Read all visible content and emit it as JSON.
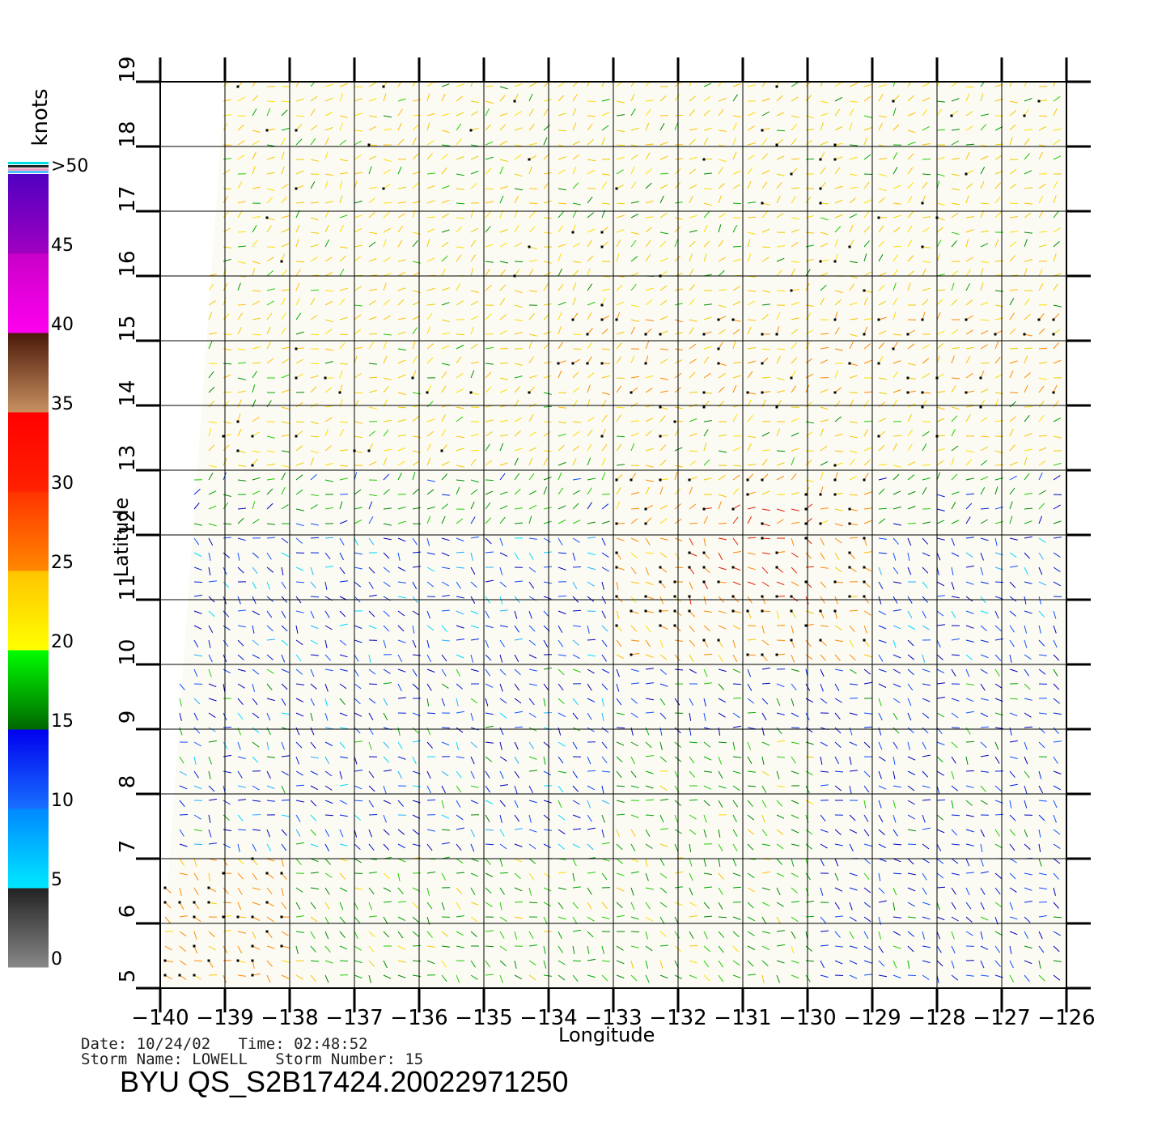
{
  "map": {
    "x_axis_label": "Longitude",
    "y_axis_label": "Latitude",
    "lon_ticks": [
      "−140",
      "−139",
      "−138",
      "−137",
      "−136",
      "−135",
      "−134",
      "−133",
      "−132",
      "−131",
      "−130",
      "−129",
      "−128",
      "−127",
      "−126"
    ],
    "lat_ticks": [
      "5",
      "6",
      "7",
      "8",
      "9",
      "10",
      "11",
      "12",
      "13",
      "14",
      "15",
      "16",
      "17",
      "18",
      "19"
    ],
    "lon_range": [
      -140,
      -126
    ],
    "lat_range": [
      5,
      19
    ],
    "grid": true
  },
  "colorbar": {
    "unit": "knots",
    "tick_labels": [
      "0",
      "5",
      "10",
      "15",
      "20",
      "25",
      "30",
      "35",
      "40",
      "45",
      ">50"
    ],
    "bands": [
      {
        "range": [
          0,
          5
        ],
        "colors": [
          "#888888",
          "#222222"
        ]
      },
      {
        "range": [
          5,
          10
        ],
        "colors": [
          "#00e8ff",
          "#0088ff"
        ]
      },
      {
        "range": [
          10,
          15
        ],
        "colors": [
          "#1870ff",
          "#0000ee"
        ]
      },
      {
        "range": [
          15,
          20
        ],
        "colors": [
          "#006600",
          "#00ff00"
        ]
      },
      {
        "range": [
          20,
          25
        ],
        "colors": [
          "#ffff00",
          "#ffc400"
        ]
      },
      {
        "range": [
          25,
          30
        ],
        "colors": [
          "#ff8800",
          "#ff3300"
        ]
      },
      {
        "range": [
          30,
          35
        ],
        "colors": [
          "#ff2200",
          "#ff0000"
        ]
      },
      {
        "range": [
          35,
          40
        ],
        "colors": [
          "#c89060",
          "#4a1808"
        ]
      },
      {
        "range": [
          40,
          45
        ],
        "colors": [
          "#ff00ee",
          "#c800c8"
        ]
      },
      {
        "range": [
          45,
          50
        ],
        "colors": [
          "#a000c0",
          "#5000c0"
        ]
      }
    ]
  },
  "metadata": {
    "date_line": "Date: 10/24/02   Time: 02:48:52",
    "storm_line": "Storm Name: LOWELL   Storm Number: 15",
    "product_id": "BYU QS_S2B17424.20022971250"
  }
}
